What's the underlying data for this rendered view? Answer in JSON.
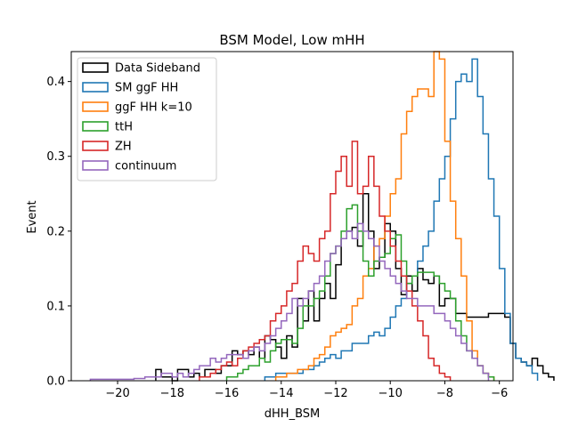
{
  "chart_data": {
    "type": "step-histogram",
    "title": "BSM Model, Low mHH",
    "xlabel": "dHH_BSM",
    "ylabel": "Event",
    "xlim": [
      -21.7,
      -5.5
    ],
    "ylim": [
      0,
      0.44
    ],
    "xticks": [
      -20,
      -18,
      -16,
      -14,
      -12,
      -10,
      -8,
      -6
    ],
    "xtick_labels": [
      "−20",
      "−18",
      "−16",
      "−14",
      "−12",
      "−10",
      "−8",
      "−6"
    ],
    "yticks": [
      0.0,
      0.1,
      0.2,
      0.3,
      0.4
    ],
    "ytick_labels": [
      "0.0",
      "0.1",
      "0.2",
      "0.3",
      "0.4"
    ],
    "legend_position": "top-left",
    "bin_width": 0.2,
    "series": [
      {
        "name": "Data Sideband",
        "color": "#000000",
        "start": -18.6,
        "values": [
          0.015,
          0.005,
          0.005,
          0,
          0.015,
          0.015,
          0.005,
          0.01,
          0.005,
          0.015,
          0.015,
          0.01,
          0.02,
          0.02,
          0.04,
          0.035,
          0.04,
          0.035,
          0.045,
          0.03,
          0.06,
          0.055,
          0.045,
          0.03,
          0.06,
          0.045,
          0.11,
          0.08,
          0.12,
          0.08,
          0.11,
          0.13,
          0.11,
          0.155,
          0.19,
          0.2,
          0.205,
          0.18,
          0.25,
          0.2,
          0.15,
          0.165,
          0.21,
          0.2,
          0.15,
          0.115,
          0.14,
          0.12,
          0.15,
          0.135,
          0.13,
          0.14,
          0.1,
          0.11,
          0.11,
          0.09,
          0.09,
          0.085,
          0.085,
          0.085,
          0.085,
          0.09,
          0.09,
          0.09,
          0.085,
          0.05,
          0.03,
          0.025,
          0.02,
          0.03,
          0.02,
          0.01,
          0.005
        ]
      },
      {
        "name": "SM ggF HH",
        "color": "#1f77b4",
        "start": -14.6,
        "values": [
          0.005,
          0.005,
          0.01,
          0.01,
          0.01,
          0.01,
          0.01,
          0.015,
          0.015,
          0.02,
          0.025,
          0.03,
          0.035,
          0.03,
          0.04,
          0.04,
          0.05,
          0.05,
          0.05,
          0.06,
          0.065,
          0.06,
          0.07,
          0.085,
          0.1,
          0.11,
          0.13,
          0.14,
          0.16,
          0.18,
          0.2,
          0.24,
          0.27,
          0.3,
          0.35,
          0.4,
          0.41,
          0.4,
          0.43,
          0.38,
          0.33,
          0.27,
          0.22,
          0.15,
          0.09,
          0.05,
          0.03,
          0.025,
          0.02,
          0.01
        ]
      },
      {
        "name": "ggF HH k=10",
        "color": "#ff7f0e",
        "start": -14.2,
        "values": [
          0.005,
          0.005,
          0.01,
          0.01,
          0.015,
          0.015,
          0.02,
          0.03,
          0.035,
          0.045,
          0.06,
          0.065,
          0.07,
          0.075,
          0.1,
          0.11,
          0.14,
          0.15,
          0.18,
          0.19,
          0.22,
          0.25,
          0.27,
          0.33,
          0.36,
          0.38,
          0.39,
          0.39,
          0.38,
          0.44,
          0.43,
          0.32,
          0.24,
          0.19,
          0.14,
          0.08,
          0.04,
          0.02,
          0.01,
          0.005
        ]
      },
      {
        "name": "ttH",
        "color": "#2ca02c",
        "start": -16.0,
        "values": [
          0.005,
          0.005,
          0.01,
          0.015,
          0.02,
          0.02,
          0.03,
          0.025,
          0.04,
          0.05,
          0.055,
          0.055,
          0.05,
          0.07,
          0.1,
          0.1,
          0.11,
          0.12,
          0.14,
          0.17,
          0.18,
          0.2,
          0.23,
          0.235,
          0.2,
          0.16,
          0.14,
          0.16,
          0.165,
          0.17,
          0.19,
          0.195,
          0.16,
          0.13,
          0.14,
          0.145,
          0.145,
          0.145,
          0.14,
          0.13,
          0.12,
          0.11,
          0.08,
          0.06,
          0.04,
          0.03,
          0.02,
          0.01,
          0.005
        ]
      },
      {
        "name": "ZH",
        "color": "#d62728",
        "start": -17.0,
        "values": [
          0.005,
          0.005,
          0.01,
          0.015,
          0.02,
          0.025,
          0.02,
          0.03,
          0.04,
          0.045,
          0.05,
          0.055,
          0.06,
          0.08,
          0.09,
          0.1,
          0.12,
          0.13,
          0.16,
          0.18,
          0.17,
          0.16,
          0.19,
          0.2,
          0.25,
          0.28,
          0.3,
          0.26,
          0.32,
          0.25,
          0.26,
          0.3,
          0.26,
          0.22,
          0.2,
          0.18,
          0.16,
          0.14,
          0.12,
          0.1,
          0.08,
          0.06,
          0.03,
          0.02,
          0.01,
          0.005
        ]
      },
      {
        "name": "continuum",
        "color": "#9467bd",
        "start": -21.0,
        "values": [
          0.002,
          0.002,
          0.002,
          0.002,
          0.002,
          0.002,
          0.002,
          0.002,
          0.003,
          0.003,
          0.005,
          0.005,
          0.005,
          0.01,
          0.01,
          0.005,
          0.01,
          0.005,
          0.01,
          0.015,
          0.02,
          0.02,
          0.03,
          0.025,
          0.03,
          0.035,
          0.035,
          0.035,
          0.03,
          0.04,
          0.045,
          0.04,
          0.05,
          0.06,
          0.07,
          0.08,
          0.09,
          0.11,
          0.1,
          0.11,
          0.12,
          0.13,
          0.14,
          0.16,
          0.17,
          0.18,
          0.19,
          0.2,
          0.19,
          0.21,
          0.2,
          0.19,
          0.18,
          0.16,
          0.15,
          0.14,
          0.13,
          0.12,
          0.11,
          0.11,
          0.1,
          0.1,
          0.1,
          0.09,
          0.09,
          0.08,
          0.07,
          0.06,
          0.05,
          0.04,
          0.03,
          0.02,
          0.01
        ]
      }
    ]
  }
}
